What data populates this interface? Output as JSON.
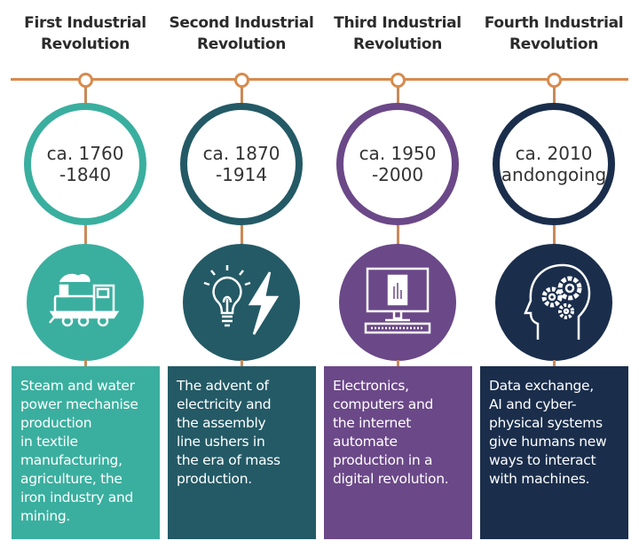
{
  "colors": {
    "timeline": "#d88a4c",
    "first": "#3aaf9f",
    "second": "#235a66",
    "third": "#6b4888",
    "fourth": "#1a2e4c"
  },
  "revolutions": [
    {
      "title": "First Industrial Revolution",
      "period": "ca. 1760\n-1840",
      "icon": "steam-locomotive-icon",
      "description": [
        "Steam and water",
        "power mechanise",
        "production",
        "in textile",
        "manufacturing,",
        "agriculture, the",
        "iron industry and",
        "mining."
      ]
    },
    {
      "title": "Second Industrial Revolution",
      "period": "ca. 1870\n-1914",
      "icon": "lightbulb-lightning-icon",
      "description": [
        "The advent of",
        "electricity and",
        "the assembly",
        "line ushers in",
        "the era of mass",
        "production."
      ]
    },
    {
      "title": "Third Industrial Revolution",
      "period": "ca. 1950\n-2000",
      "icon": "computer-icon",
      "description": [
        "Electronics,",
        "computers and",
        "the internet",
        "automate",
        "production in a",
        "digital revolution."
      ]
    },
    {
      "title": "Fourth Industrial Revolution",
      "period": "ca. 2010\nandongoing",
      "icon": "head-gears-icon",
      "description": [
        "Data exchange,",
        "AI and cyber-",
        "physical systems",
        "give humans new",
        "ways to interact",
        "with machines."
      ]
    }
  ]
}
